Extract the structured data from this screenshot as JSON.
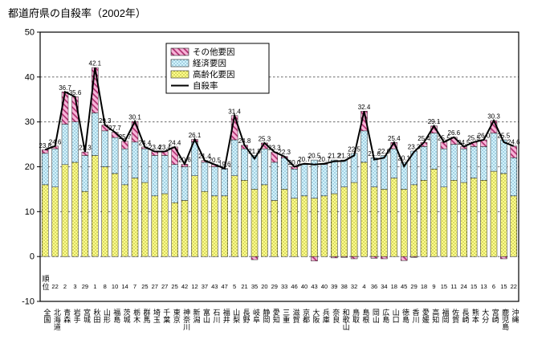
{
  "title": "都道府県の自殺率（2002年）",
  "rank_header": "順位",
  "legend": {
    "other": "その他要因",
    "econ": "経済要因",
    "aging": "高齢化要因",
    "line": "自殺率"
  },
  "colors": {
    "aging_bg": "#ffff8c",
    "aging_dot": "#7a7a00",
    "econ_bg": "#d2f4ff",
    "econ_dot": "#3a7a9a",
    "other_bg": "#f7b4d8",
    "other_line": "#b03070",
    "line": "#000000",
    "grid": "#555555",
    "border": "#000000"
  },
  "chart_data": {
    "type": "bar",
    "subtype": "stacked-bars-with-line",
    "title": "都道府県の自殺率（2002年）",
    "ylim": [
      -10,
      50
    ],
    "yticks": [
      -10,
      0,
      10,
      20,
      30,
      40,
      50
    ],
    "grid": "horizontal-dashed",
    "legend_position": "top-center-inside",
    "categories": [
      "全国",
      "北海道",
      "青森",
      "岩手",
      "宮城",
      "秋田",
      "山形",
      "福島",
      "茨城",
      "栃木",
      "群馬",
      "埼玉",
      "千葉",
      "東京",
      "神奈川",
      "新潟",
      "富山",
      "石川",
      "福井",
      "山梨",
      "長野",
      "岐阜",
      "静岡",
      "愛知",
      "三重",
      "滋賀",
      "京都",
      "大阪",
      "兵庫",
      "奈良",
      "和歌山",
      "鳥取",
      "島根",
      "岡山",
      "広島",
      "山口",
      "徳島",
      "香川",
      "愛媛",
      "高知",
      "福岡",
      "佐賀",
      "長崎",
      "熊本",
      "大分",
      "宮崎",
      "鹿児島",
      "沖縄"
    ],
    "ranks": [
      "",
      "22",
      "2",
      "3",
      "29",
      "1",
      "8",
      "10",
      "14",
      "7",
      "25",
      "27",
      "27",
      "25",
      "42",
      "12",
      "37",
      "43",
      "47",
      "5",
      "21",
      "35",
      "20",
      "29",
      "33",
      "46",
      "40",
      "43",
      "40",
      "39",
      "38",
      "32",
      "4",
      "36",
      "34",
      "18",
      "45",
      "29",
      "18",
      "9",
      "15",
      "11",
      "24",
      "15",
      "13",
      "6",
      "15",
      "22"
    ],
    "series": [
      {
        "name": "高齢化要因",
        "values": [
          16.0,
          15.5,
          20.5,
          21.0,
          14.5,
          22.5,
          20.0,
          18.5,
          16.0,
          17.5,
          16.5,
          13.5,
          14.0,
          12.0,
          12.5,
          18.0,
          14.5,
          13.5,
          13.5,
          18.0,
          17.0,
          15.0,
          16.0,
          12.5,
          15.0,
          13.0,
          13.5,
          13.0,
          13.5,
          14.0,
          15.5,
          16.5,
          21.0,
          15.5,
          15.0,
          17.5,
          15.0,
          16.0,
          17.0,
          19.5,
          15.5,
          17.0,
          16.5,
          17.5,
          17.0,
          19.0,
          18.5,
          13.5
        ]
      },
      {
        "name": "経済要因",
        "values": [
          7.0,
          8.5,
          9.0,
          9.0,
          8.0,
          9.5,
          8.0,
          8.0,
          8.0,
          8.0,
          7.5,
          9.0,
          8.5,
          8.5,
          7.5,
          7.5,
          6.5,
          6.5,
          6.0,
          8.0,
          7.0,
          7.5,
          8.0,
          8.5,
          7.0,
          6.5,
          7.0,
          8.5,
          7.0,
          7.5,
          6.0,
          6.5,
          7.0,
          6.5,
          7.5,
          6.5,
          6.0,
          7.5,
          7.5,
          8.0,
          8.5,
          8.0,
          7.5,
          7.0,
          7.5,
          8.5,
          7.5,
          8.5
        ]
      },
      {
        "name": "その他要因",
        "values": [
          0.8,
          0.6,
          7.2,
          5.6,
          0.8,
          10.1,
          1.3,
          1.2,
          1.7,
          4.6,
          0.4,
          0.9,
          0.9,
          3.9,
          0.6,
          0.6,
          0.4,
          0.5,
          0.1,
          5.4,
          0.8,
          -0.7,
          1.3,
          2.3,
          0.3,
          0.5,
          0.2,
          -1.0,
          0.2,
          -0.3,
          -0.2,
          -0.5,
          4.4,
          -0.4,
          -0.5,
          1.4,
          -0.9,
          -0.2,
          0.9,
          1.6,
          1.5,
          1.6,
          0.5,
          1.0,
          1.5,
          2.8,
          -0.5,
          2.6
        ]
      }
    ],
    "line": {
      "name": "自殺率",
      "values": [
        23.8,
        24.6,
        36.7,
        35.6,
        23.3,
        42.1,
        29.3,
        27.7,
        25.7,
        30.1,
        24.4,
        23.4,
        23.4,
        24.4,
        20.6,
        26.1,
        21.4,
        20.5,
        19.6,
        31.4,
        24.8,
        21.8,
        25.3,
        23.3,
        22.3,
        20.0,
        20.7,
        20.5,
        20.7,
        21.2,
        21.3,
        22.5,
        32.4,
        21.6,
        22.0,
        25.4,
        20.1,
        23.3,
        25.4,
        29.1,
        25.5,
        26.6,
        24.5,
        25.5,
        26.0,
        30.3,
        25.5,
        24.6
      ]
    }
  }
}
